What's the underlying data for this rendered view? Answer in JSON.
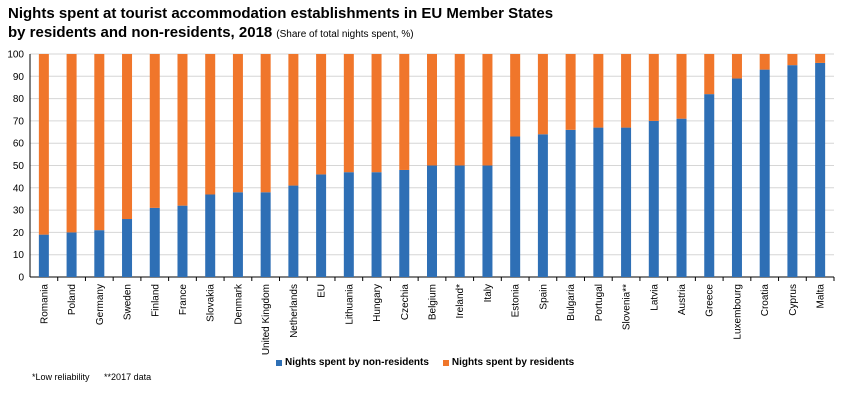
{
  "title": {
    "line1": "Nights spent at tourist accommodation establishments in EU Member States",
    "line2": "by residents and non-residents, 2018",
    "subtitle": "(Share of total nights spent, %)"
  },
  "colors": {
    "non_residents": "#2e6fb5",
    "residents": "#f0762b",
    "grid": "#d6d6d6"
  },
  "chart_data": {
    "type": "bar",
    "stacked": true,
    "categories": [
      "Romania",
      "Poland",
      "Germany",
      "Sweden",
      "Finland",
      "France",
      "Slovakia",
      "Denmark",
      "United Kingdom",
      "Netherlands",
      "EU",
      "Lithuania",
      "Hungary",
      "Czechia",
      "Belgium",
      "Ireland*",
      "Italy",
      "Estonia",
      "Spain",
      "Bulgaria",
      "Portugal",
      "Slovenia**",
      "Latvia",
      "Austria",
      "Greece",
      "Luxembourg",
      "Croatia",
      "Cyprus",
      "Malta"
    ],
    "series": [
      {
        "name": "Nights spent by non-residents",
        "values": [
          19,
          20,
          21,
          26,
          31,
          32,
          37,
          38,
          38,
          41,
          46,
          47,
          47,
          48,
          50,
          50,
          50,
          63,
          64,
          66,
          67,
          67,
          70,
          71,
          82,
          89,
          93,
          95,
          96
        ]
      },
      {
        "name": "Nights spent by residents",
        "values": [
          81,
          80,
          79,
          74,
          69,
          68,
          63,
          62,
          62,
          59,
          54,
          53,
          53,
          52,
          50,
          50,
          50,
          37,
          36,
          34,
          33,
          33,
          30,
          29,
          18,
          11,
          7,
          5,
          4
        ]
      }
    ],
    "ylim": [
      0,
      100
    ],
    "yticks": [
      0,
      10,
      20,
      30,
      40,
      50,
      60,
      70,
      80,
      90,
      100
    ],
    "grid": true,
    "legend_position": "bottom"
  },
  "footnotes": [
    "*Low reliability",
    "**2017 data"
  ]
}
